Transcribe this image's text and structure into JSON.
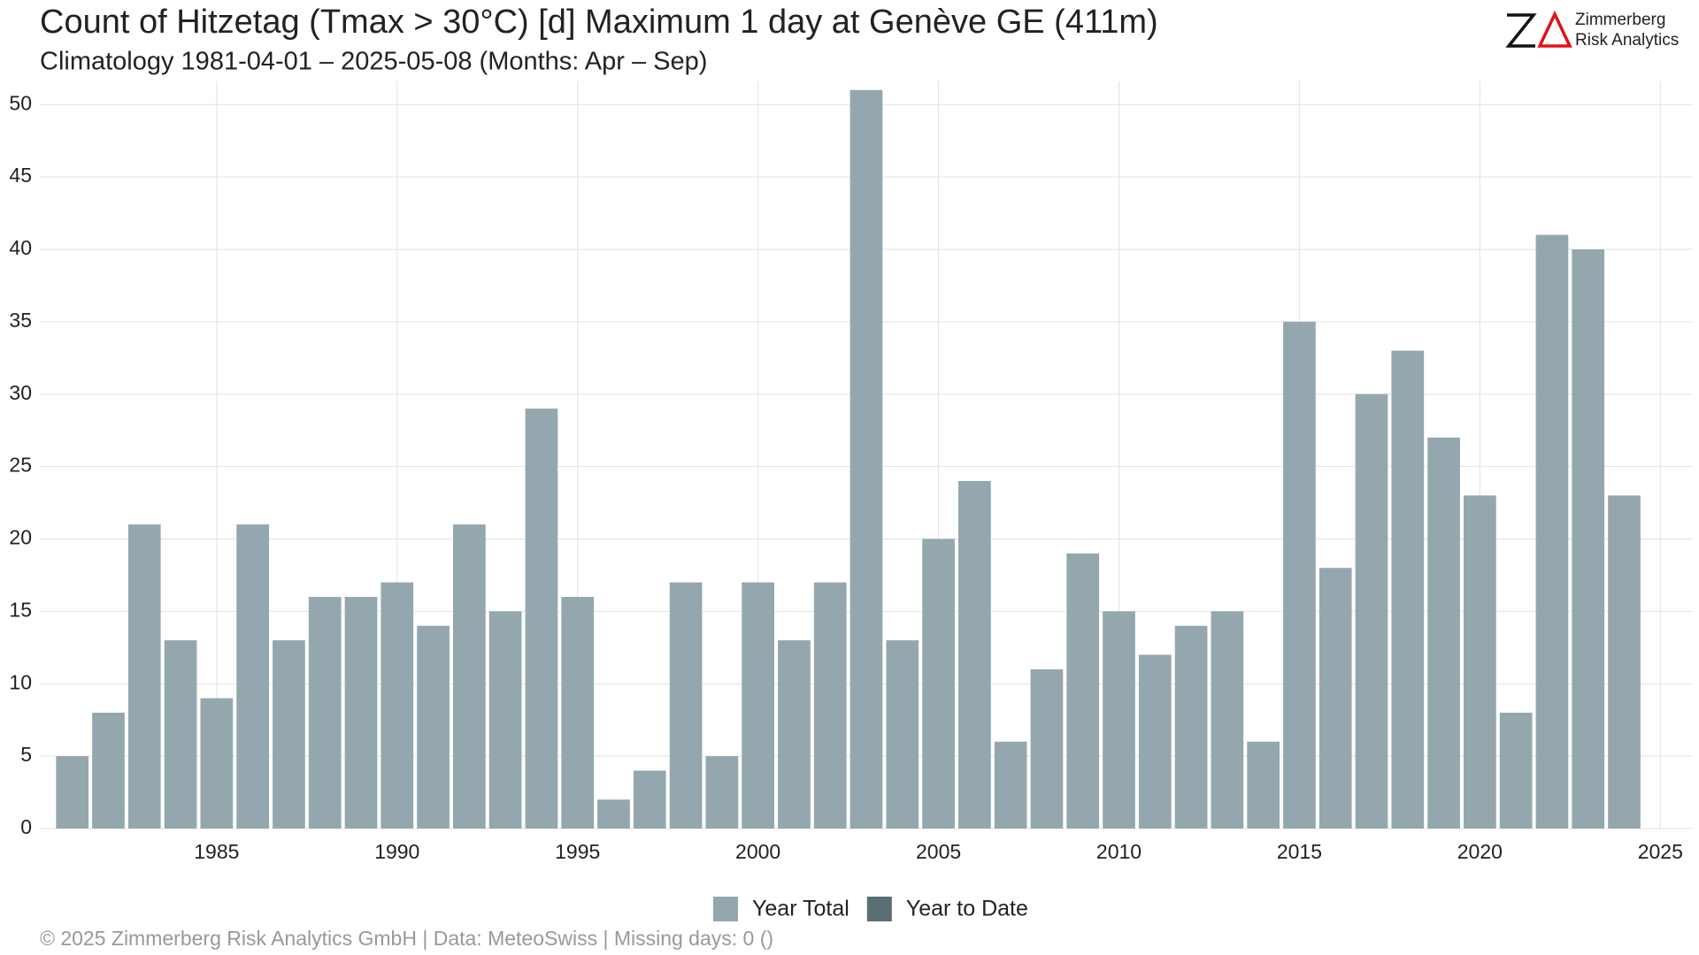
{
  "chart_data": {
    "type": "bar",
    "title": "Count of Hitzetag (Tmax > 30°C) [d] Maximum 1 day at Genève  GE (411m)",
    "subtitle": "Climatology 1981-04-01 – 2025-05-08 (Months: Apr – Sep)",
    "footer": "©  2025 Zimmerberg Risk Analytics GmbH | Data: MeteoSwiss | Missing days: 0 ()",
    "logo": {
      "line1": "Zimmerberg",
      "line2": "Risk Analytics"
    },
    "x": [
      1981,
      1982,
      1983,
      1984,
      1985,
      1986,
      1987,
      1988,
      1989,
      1990,
      1991,
      1992,
      1993,
      1994,
      1995,
      1996,
      1997,
      1998,
      1999,
      2000,
      2001,
      2002,
      2003,
      2004,
      2005,
      2006,
      2007,
      2008,
      2009,
      2010,
      2011,
      2012,
      2013,
      2014,
      2015,
      2016,
      2017,
      2018,
      2019,
      2020,
      2021,
      2022,
      2023,
      2024,
      2025
    ],
    "series": [
      {
        "name": "Year Total",
        "color": "#94a7ae",
        "values": [
          5,
          8,
          21,
          13,
          9,
          21,
          13,
          16,
          16,
          17,
          14,
          21,
          15,
          29,
          16,
          2,
          4,
          17,
          5,
          17,
          13,
          17,
          51,
          13,
          20,
          24,
          6,
          11,
          19,
          15,
          12,
          14,
          15,
          6,
          35,
          18,
          30,
          33,
          27,
          23,
          8,
          41,
          40,
          23,
          null
        ]
      },
      {
        "name": "Year to Date",
        "color": "#5a6e75",
        "values": [
          null,
          null,
          null,
          null,
          null,
          null,
          null,
          null,
          null,
          null,
          null,
          null,
          null,
          null,
          null,
          null,
          null,
          null,
          null,
          null,
          null,
          null,
          null,
          null,
          null,
          null,
          null,
          null,
          null,
          null,
          null,
          null,
          null,
          null,
          null,
          null,
          null,
          null,
          null,
          null,
          null,
          null,
          null,
          null,
          null
        ]
      }
    ],
    "xlim": [
      1980.1,
      2025.9
    ],
    "xticks": [
      1985,
      1990,
      1995,
      2000,
      2005,
      2010,
      2015,
      2020,
      2025
    ],
    "ylim": [
      0,
      51.6
    ],
    "yticks": [
      0,
      5,
      10,
      15,
      20,
      25,
      30,
      35,
      40,
      45,
      50
    ],
    "grid": true,
    "legend": "bottom"
  }
}
